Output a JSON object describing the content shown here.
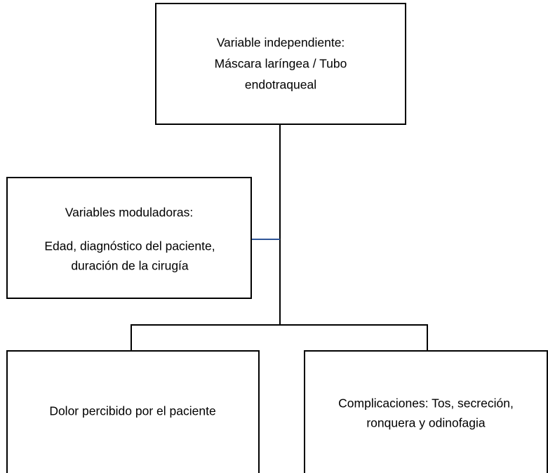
{
  "nodes": [
    {
      "lines": [
        "Variable independiente:",
        "Máscara laríngea / Tubo",
        "endotraqueal"
      ]
    },
    {
      "lines": [
        "Variables moduladoras:",
        "Edad, diagnóstico del paciente,",
        "duración de la cirugía"
      ]
    },
    {
      "lines": [
        "Dolor percibido por el paciente"
      ]
    },
    {
      "lines": [
        "Complicaciones: Tos, secreción,",
        "ronquera y odinofagia"
      ]
    }
  ]
}
